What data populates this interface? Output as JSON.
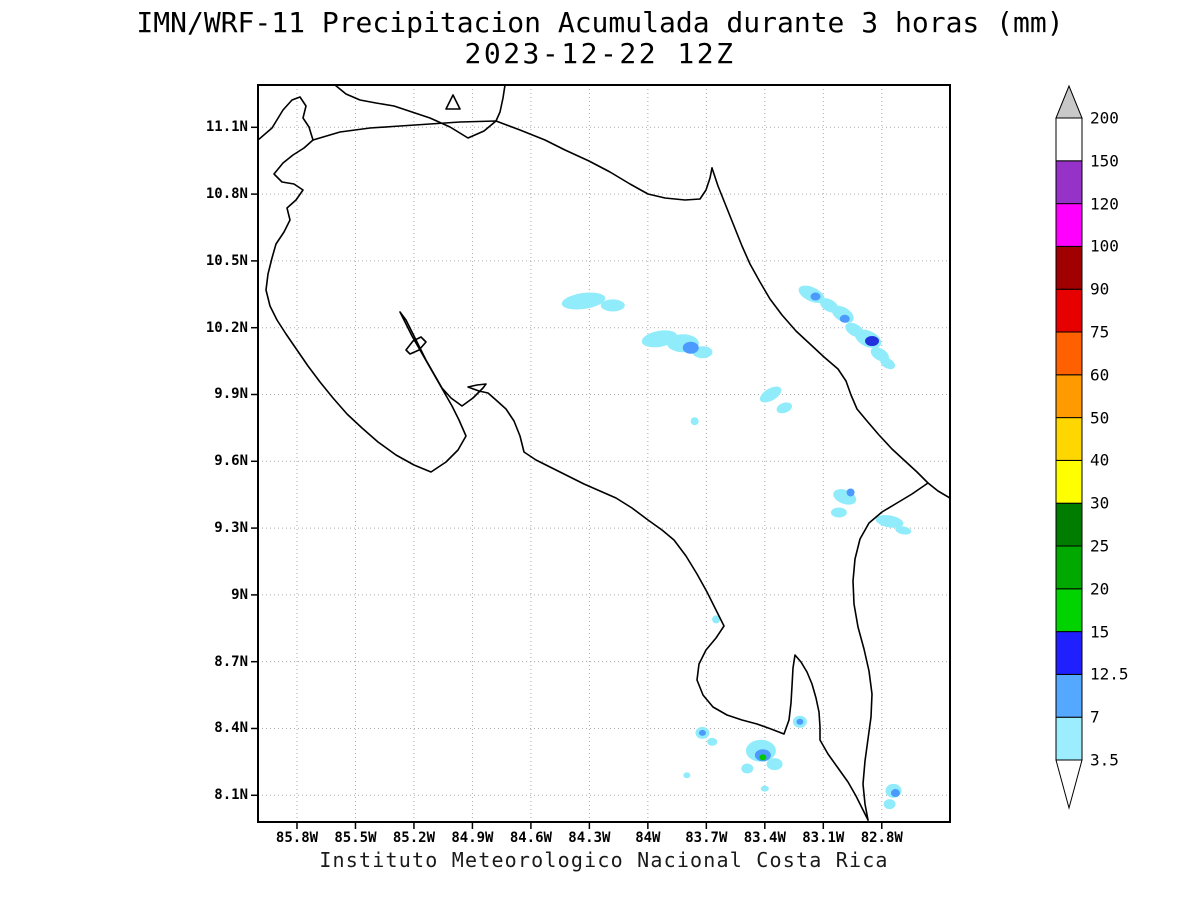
{
  "title": {
    "line1": "IMN/WRF-11 Precipitacion Acumulada durante 3 horas (mm)",
    "line2": "2023-12-22 12Z"
  },
  "caption": "Instituto Meteorologico Nacional Costa Rica",
  "chart_data": {
    "type": "filled-contour-map",
    "model": "IMN/WRF-11",
    "variable": "Precipitacion Acumulada durante 3 horas (mm)",
    "valid_time": "2023-12-22 12Z",
    "region": "Costa Rica",
    "x_axis": {
      "values": [
        85.8,
        85.5,
        85.2,
        84.9,
        84.6,
        84.3,
        84.0,
        83.7,
        83.4,
        83.1,
        82.8
      ],
      "labels": [
        "85.8W",
        "85.5W",
        "85.2W",
        "84.9W",
        "84.6W",
        "84.3W",
        "84W",
        "83.7W",
        "83.4W",
        "83.1W",
        "82.8W"
      ]
    },
    "y_axis": {
      "values": [
        11.1,
        10.8,
        10.5,
        10.2,
        9.9,
        9.6,
        9.3,
        9.0,
        8.7,
        8.4,
        8.1
      ],
      "labels": [
        "11.1N",
        "10.8N",
        "10.5N",
        "10.2N",
        "9.9N",
        "9.6N",
        "9.3N",
        "9N",
        "8.7N",
        "8.4N",
        "8.1N"
      ]
    },
    "lon_range_w": [
      86.0,
      82.45
    ],
    "lat_range_n": [
      7.98,
      11.29
    ],
    "grid_on": true,
    "colorbar": {
      "levels_bottom_to_top": [
        "3.5",
        "7",
        "12.5",
        "15",
        "20",
        "25",
        "30",
        "40",
        "50",
        "60",
        "75",
        "90",
        "100",
        "120",
        "150",
        "200"
      ],
      "segment_colors_bottom_to_top": [
        "#9ceeff",
        "#55a8ff",
        "#2020ff",
        "#00d300",
        "#00a800",
        "#007d00",
        "#ffff00",
        "#ffd700",
        "#ff9b00",
        "#ff6000",
        "#e60000",
        "#a00000",
        "#ff00ff",
        "#9632c8",
        "#ffffff"
      ],
      "below_min_color": "#ffffff",
      "above_max_color": "#c8c8c8"
    },
    "precip_levels": {
      "l1": {
        "range_mm": "3.5-7",
        "color": "#90ecfa"
      },
      "l2": {
        "range_mm": "7-12.5",
        "color": "#4d9aff"
      },
      "l3": {
        "range_mm": "12.5-15",
        "color": "#2233dd"
      },
      "l4": {
        "range_mm": "15-20",
        "color": "#00c800"
      }
    },
    "precip_cells": [
      [
        84.33,
        10.32,
        22,
        8,
        -8,
        "l1"
      ],
      [
        84.18,
        10.3,
        12,
        6,
        0,
        "l1"
      ],
      [
        83.94,
        10.15,
        18,
        8,
        -10,
        "l1"
      ],
      [
        83.82,
        10.13,
        16,
        9,
        0,
        "l1"
      ],
      [
        83.78,
        10.11,
        8,
        6,
        0,
        "l2"
      ],
      [
        83.72,
        10.09,
        10,
        6,
        0,
        "l1"
      ],
      [
        83.16,
        10.35,
        14,
        7,
        25,
        "l1"
      ],
      [
        83.14,
        10.34,
        5,
        4,
        0,
        "l2"
      ],
      [
        83.07,
        10.3,
        10,
        6,
        30,
        "l1"
      ],
      [
        83.0,
        10.26,
        12,
        7,
        30,
        "l1"
      ],
      [
        82.99,
        10.24,
        5,
        4,
        0,
        "l2"
      ],
      [
        82.94,
        10.19,
        10,
        6,
        30,
        "l1"
      ],
      [
        82.87,
        10.15,
        14,
        8,
        25,
        "l1"
      ],
      [
        82.85,
        10.14,
        7,
        5,
        0,
        "l3"
      ],
      [
        82.81,
        10.08,
        10,
        6,
        30,
        "l1"
      ],
      [
        82.77,
        10.04,
        8,
        5,
        30,
        "l1"
      ],
      [
        83.37,
        9.9,
        12,
        6,
        -30,
        "l1"
      ],
      [
        83.3,
        9.84,
        8,
        5,
        -20,
        "l1"
      ],
      [
        83.76,
        9.78,
        4,
        4,
        0,
        "l1"
      ],
      [
        82.99,
        9.44,
        12,
        7,
        20,
        "l1"
      ],
      [
        82.96,
        9.46,
        4,
        4,
        0,
        "l2"
      ],
      [
        83.02,
        9.37,
        8,
        5,
        0,
        "l1"
      ],
      [
        82.76,
        9.33,
        14,
        6,
        10,
        "l1"
      ],
      [
        82.69,
        9.29,
        8,
        4,
        10,
        "l1"
      ],
      [
        83.65,
        8.89,
        4,
        4,
        0,
        "l1"
      ],
      [
        83.72,
        8.38,
        7,
        6,
        0,
        "l1"
      ],
      [
        83.72,
        8.38,
        3.5,
        3,
        0,
        "l2"
      ],
      [
        83.67,
        8.34,
        5,
        4,
        0,
        "l1"
      ],
      [
        83.42,
        8.3,
        15,
        11,
        0,
        "l1"
      ],
      [
        83.41,
        8.28,
        8,
        6,
        0,
        "l2"
      ],
      [
        83.41,
        8.27,
        3.5,
        3,
        0,
        "l4"
      ],
      [
        83.35,
        8.24,
        8,
        6,
        0,
        "l1"
      ],
      [
        83.49,
        8.22,
        6,
        5,
        0,
        "l1"
      ],
      [
        83.22,
        8.43,
        7,
        6,
        0,
        "l1"
      ],
      [
        83.22,
        8.43,
        3.5,
        3,
        0,
        "l2"
      ],
      [
        83.8,
        8.19,
        3.5,
        3,
        0,
        "l1"
      ],
      [
        82.74,
        8.12,
        8,
        7,
        0,
        "l1"
      ],
      [
        82.73,
        8.11,
        4.5,
        4,
        0,
        "l2"
      ],
      [
        82.76,
        8.06,
        6,
        5,
        0,
        "l1"
      ],
      [
        83.4,
        8.13,
        4,
        3,
        0,
        "l1"
      ]
    ]
  }
}
